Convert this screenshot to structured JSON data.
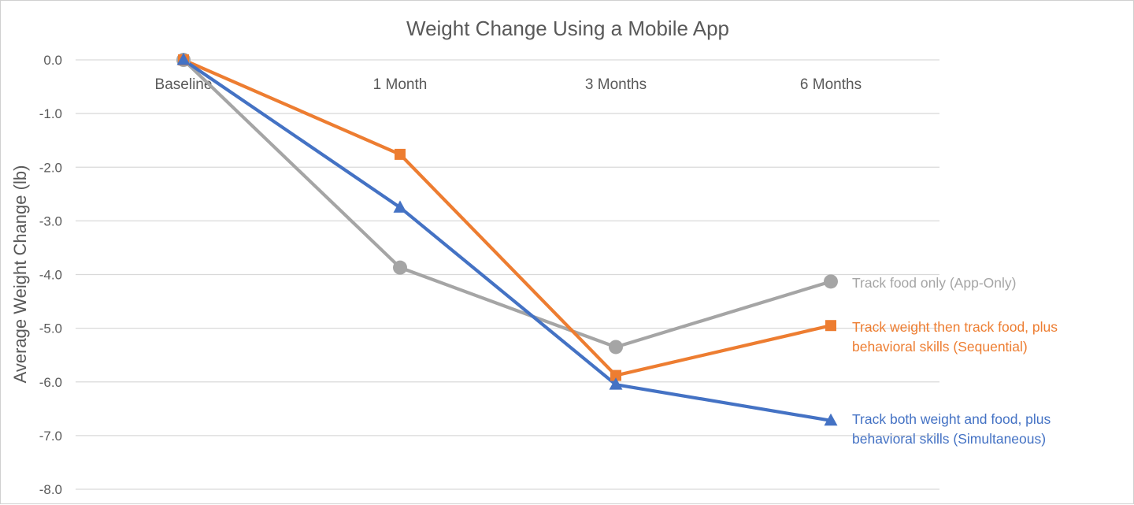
{
  "chart_data": {
    "type": "line",
    "title": "Weight Change Using a Mobile App",
    "xlabel": "",
    "ylabel": "Average Weight Change (lb)",
    "categories": [
      "Baseline",
      "1 Month",
      "3 Months",
      "6 Months"
    ],
    "ylim": [
      -8.0,
      0.0
    ],
    "yticks": [
      "0.0",
      "-1.0",
      "-2.0",
      "-3.0",
      "-4.0",
      "-5.0",
      "-6.0",
      "-7.0",
      "-8.0"
    ],
    "ytick_values": [
      0,
      -1,
      -2,
      -3,
      -4,
      -5,
      -6,
      -7,
      -8
    ],
    "grid": true,
    "legend": "inline-right",
    "series": [
      {
        "name": "Track food only (App-Only)",
        "label_lines": [
          "Track food only (App-Only)"
        ],
        "values": [
          0.0,
          -3.87,
          -5.35,
          -4.13
        ],
        "color": "#a5a5a5",
        "marker": "circle"
      },
      {
        "name": "Track weight then track food, plus behavioral skills (Sequential)",
        "label_lines": [
          "Track weight then track food, plus",
          "behavioral skills (Sequential)"
        ],
        "values": [
          0.0,
          -1.76,
          -5.88,
          -4.95
        ],
        "color": "#ed7d31",
        "marker": "square"
      },
      {
        "name": "Track both weight and food, plus behavioral skills (Simultaneous)",
        "label_lines": [
          "Track both weight and food, plus",
          "behavioral skills (Simultaneous)"
        ],
        "values": [
          0.0,
          -2.75,
          -6.05,
          -6.72
        ],
        "color": "#4472c4",
        "marker": "triangle"
      }
    ]
  }
}
